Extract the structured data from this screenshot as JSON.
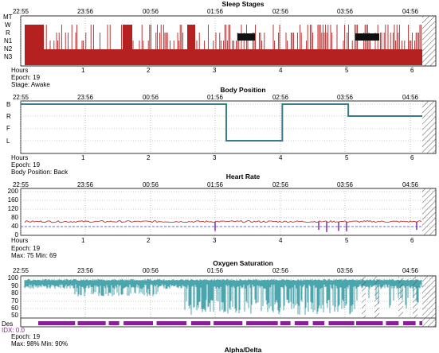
{
  "time_ticks": [
    "22:55",
    "23:56",
    "00:56",
    "01:56",
    "02:56",
    "03:56",
    "04:56"
  ],
  "hour_ticks": [
    "1",
    "2",
    "3",
    "4",
    "5",
    "6"
  ],
  "hours_label": "Hours",
  "panels": {
    "sleep": {
      "title": "Sleep Stages",
      "y_labels": [
        "MT",
        "W",
        "R",
        "N1",
        "N2",
        "N3"
      ],
      "epoch": "Epoch: 19",
      "detail": "Stage: Awake",
      "colors": {
        "fill": "#b52020",
        "n1_block": "#111111"
      }
    },
    "position": {
      "title": "Body Position",
      "y_labels": [
        "B",
        "R",
        "F",
        "L"
      ],
      "epoch": "Epoch: 19",
      "detail": "Body Position: Back",
      "chart_data": {
        "type": "line",
        "x_unit": "hours",
        "levels": [
          "B",
          "R",
          "F",
          "L"
        ],
        "segments": [
          {
            "from": 0.0,
            "to": 3.2,
            "level": "B"
          },
          {
            "from": 3.2,
            "to": 4.05,
            "level": "L"
          },
          {
            "from": 4.05,
            "to": 5.05,
            "level": "B"
          },
          {
            "from": 5.05,
            "to": 6.25,
            "level": "R"
          }
        ],
        "colors": {
          "line": "#3a7a8a"
        }
      }
    },
    "heart": {
      "title": "Heart Rate",
      "y_labels": [
        "200",
        "160",
        "120",
        "80",
        "40",
        "0"
      ],
      "epoch": "Epoch: 19",
      "detail": "Max: 75 Min: 69",
      "chart_data": {
        "type": "line",
        "ylim": [
          0,
          200
        ],
        "baseline": 63,
        "colors": {
          "line": "#b01818",
          "dips": "#7a1fa0",
          "ref": "#4040c0"
        }
      }
    },
    "spo2": {
      "title": "Oxygen Saturation",
      "y_labels": [
        "100",
        "90",
        "80",
        "70",
        "60",
        "50"
      ],
      "des_label": "Des",
      "idx_label": "IDX: 0.0",
      "epoch": "Epoch: 19",
      "detail": "Max: 98% Min: 90%",
      "chart_data": {
        "type": "area",
        "ylim": [
          50,
          100
        ],
        "colors": {
          "fill": "#4aa5ad",
          "des_bar": "#8a1f9a"
        }
      }
    },
    "alpha": {
      "title": "Alpha/Delta"
    }
  }
}
